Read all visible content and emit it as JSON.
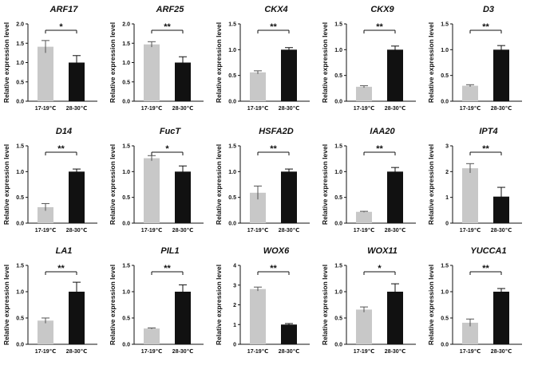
{
  "figure": {
    "ylabel": "Relative expression level",
    "categories": [
      "17-19℃",
      "28-30℃"
    ],
    "colors": {
      "low_temp": "#c8c8c8",
      "high_temp": "#111111",
      "axis": "#111111"
    }
  },
  "chart_data": [
    {
      "type": "bar",
      "title": "ARF17",
      "categories": [
        "17-19℃",
        "28-30℃"
      ],
      "values": [
        1.41,
        1.0
      ],
      "errors": [
        0.16,
        0.18
      ],
      "ylabel": "Relative expression level",
      "ylim": [
        0,
        2.0
      ],
      "yticks": [
        "0.0",
        "0.5",
        "1.0",
        "1.5",
        "2.0"
      ],
      "significance": "*"
    },
    {
      "type": "bar",
      "title": "ARF25",
      "categories": [
        "17-19℃",
        "28-30℃"
      ],
      "values": [
        1.47,
        1.0
      ],
      "errors": [
        0.07,
        0.15
      ],
      "ylabel": "Relative expression level",
      "ylim": [
        0,
        2.0
      ],
      "yticks": [
        "0.0",
        "0.5",
        "1.0",
        "1.5",
        "2.0"
      ],
      "significance": "**"
    },
    {
      "type": "bar",
      "title": "CKX4",
      "categories": [
        "17-19℃",
        "28-30℃"
      ],
      "values": [
        0.56,
        1.0
      ],
      "errors": [
        0.03,
        0.04
      ],
      "ylabel": "Relative expression level",
      "ylim": [
        0,
        1.5
      ],
      "yticks": [
        "0.0",
        "0.5",
        "1.0",
        "1.5"
      ],
      "significance": "**"
    },
    {
      "type": "bar",
      "title": "CKX9",
      "categories": [
        "17-19℃",
        "28-30℃"
      ],
      "values": [
        0.28,
        1.0
      ],
      "errors": [
        0.02,
        0.07
      ],
      "ylabel": "Relative expression level",
      "ylim": [
        0,
        1.5
      ],
      "yticks": [
        "0.0",
        "0.5",
        "1.0",
        "1.5"
      ],
      "significance": "**"
    },
    {
      "type": "bar",
      "title": "D3",
      "categories": [
        "17-19℃",
        "28-30℃"
      ],
      "values": [
        0.3,
        1.0
      ],
      "errors": [
        0.02,
        0.08
      ],
      "ylabel": "Relative expression level",
      "ylim": [
        0,
        1.5
      ],
      "yticks": [
        "0.0",
        "0.5",
        "1.0",
        "1.5"
      ],
      "significance": "**"
    },
    {
      "type": "bar",
      "title": "D14",
      "categories": [
        "17-19℃",
        "28-30℃"
      ],
      "values": [
        0.31,
        1.0
      ],
      "errors": [
        0.07,
        0.05
      ],
      "ylabel": "Relative expression level",
      "ylim": [
        0,
        1.5
      ],
      "yticks": [
        "0.0",
        "0.5",
        "1.0",
        "1.5"
      ],
      "significance": "**"
    },
    {
      "type": "bar",
      "title": "FucT",
      "categories": [
        "17-19℃",
        "28-30℃"
      ],
      "values": [
        1.26,
        1.0
      ],
      "errors": [
        0.05,
        0.11
      ],
      "ylabel": "Relative expression level",
      "ylim": [
        0,
        1.5
      ],
      "yticks": [
        "0.0",
        "0.5",
        "1.0",
        "1.5"
      ],
      "significance": "*"
    },
    {
      "type": "bar",
      "title": "HSFA2D",
      "categories": [
        "17-19℃",
        "28-30℃"
      ],
      "values": [
        0.59,
        1.0
      ],
      "errors": [
        0.13,
        0.05
      ],
      "ylabel": "Relative expression level",
      "ylim": [
        0,
        1.5
      ],
      "yticks": [
        "0.0",
        "0.5",
        "1.0",
        "1.5"
      ],
      "significance": "**"
    },
    {
      "type": "bar",
      "title": "IAA20",
      "categories": [
        "17-19℃",
        "28-30℃"
      ],
      "values": [
        0.22,
        1.0
      ],
      "errors": [
        0.01,
        0.08
      ],
      "ylabel": "Relative expression level",
      "ylim": [
        0,
        1.5
      ],
      "yticks": [
        "0.0",
        "0.5",
        "1.0",
        "1.5"
      ],
      "significance": "**"
    },
    {
      "type": "bar",
      "title": "IPT4",
      "categories": [
        "17-19℃",
        "28-30℃"
      ],
      "values": [
        2.13,
        1.03
      ],
      "errors": [
        0.18,
        0.36
      ],
      "ylabel": "Relative expression level",
      "ylim": [
        0,
        3
      ],
      "yticks": [
        "0",
        "1",
        "2",
        "3"
      ],
      "significance": "**"
    },
    {
      "type": "bar",
      "title": "LA1",
      "categories": [
        "17-19℃",
        "28-30℃"
      ],
      "values": [
        0.45,
        1.0
      ],
      "errors": [
        0.05,
        0.18
      ],
      "ylabel": "Relative expression level",
      "ylim": [
        0,
        1.5
      ],
      "yticks": [
        "0.0",
        "0.5",
        "1.0",
        "1.5"
      ],
      "significance": "**"
    },
    {
      "type": "bar",
      "title": "PIL1",
      "categories": [
        "17-19℃",
        "28-30℃"
      ],
      "values": [
        0.3,
        1.0
      ],
      "errors": [
        0.01,
        0.13
      ],
      "ylabel": "Relative expression level",
      "ylim": [
        0,
        1.5
      ],
      "yticks": [
        "0.0",
        "0.5",
        "1.0",
        "1.5"
      ],
      "significance": "**"
    },
    {
      "type": "bar",
      "title": "WOX6",
      "categories": [
        "17-19℃",
        "28-30℃"
      ],
      "values": [
        2.8,
        1.0
      ],
      "errors": [
        0.1,
        0.05
      ],
      "ylabel": "Relative expression level",
      "ylim": [
        0,
        4
      ],
      "yticks": [
        "0",
        "1",
        "2",
        "3",
        "4"
      ],
      "significance": "**"
    },
    {
      "type": "bar",
      "title": "WOX11",
      "categories": [
        "17-19℃",
        "28-30℃"
      ],
      "values": [
        0.66,
        1.0
      ],
      "errors": [
        0.05,
        0.15
      ],
      "ylabel": "Relative expression level",
      "ylim": [
        0,
        1.5
      ],
      "yticks": [
        "0.0",
        "0.5",
        "1.0",
        "1.5"
      ],
      "significance": "*"
    },
    {
      "type": "bar",
      "title": "YUCCA1",
      "categories": [
        "17-19℃",
        "28-30℃"
      ],
      "values": [
        0.41,
        1.0
      ],
      "errors": [
        0.07,
        0.06
      ],
      "ylabel": "Relative expression level",
      "ylim": [
        0,
        1.5
      ],
      "yticks": [
        "0.0",
        "0.5",
        "1.0",
        "1.5"
      ],
      "significance": "**"
    }
  ]
}
